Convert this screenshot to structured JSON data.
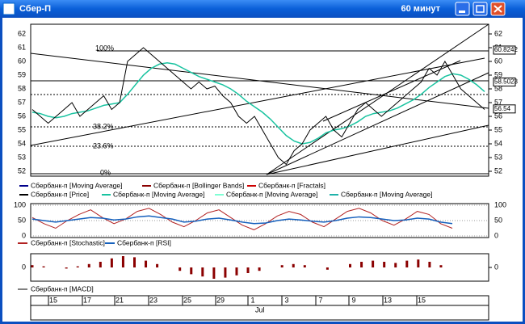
{
  "window": {
    "title": "Сбер-П",
    "timeframe": "60 минут"
  },
  "price_panel": {
    "yticks": [
      62,
      61,
      60,
      59,
      58,
      57,
      56,
      55,
      54,
      53,
      52
    ],
    "price_levels": [
      60.8242,
      58.5023,
      56.54
    ],
    "fib_levels": [
      "100%",
      "38.2%",
      "23.6%",
      "0%"
    ],
    "legend": [
      "Сбербанк-п [Moving Average]",
      "Сбербанк-п [Bollinger Bands]",
      "Сбербанк-п [Fractals]",
      "Сбербанк-п [Price]",
      "Сбербанк-п [Moving Average]",
      "Сбербанк-п [Moving Average]",
      "Сбербанк-п [Moving Average]"
    ],
    "close": [
      56.5,
      56,
      55.5,
      56,
      56.5,
      57,
      56,
      56.5,
      57,
      57.5,
      56.5,
      57,
      60,
      60.5,
      61,
      60.5,
      60,
      59.5,
      59,
      58.5,
      58,
      58.5,
      58,
      58.2,
      57.5,
      57,
      56,
      55.5,
      56,
      55,
      54,
      53,
      52.5,
      53.5,
      54,
      55,
      55.5,
      56,
      55,
      54.5,
      55.5,
      56.5,
      57,
      56.5,
      56,
      56.5,
      57,
      57.5,
      58,
      58.5,
      59.5,
      59,
      60,
      59,
      58,
      57.5,
      57,
      56.5
    ],
    "ma": [
      56.3,
      56.2,
      56,
      55.9,
      56,
      56.2,
      56.3,
      56.4,
      56.6,
      56.8,
      56.9,
      57,
      57.6,
      58.3,
      59,
      59.5,
      59.8,
      59.9,
      59.8,
      59.5,
      59.2,
      58.9,
      58.7,
      58.5,
      58.3,
      58,
      57.6,
      57.1,
      56.7,
      56.3,
      55.8,
      55.2,
      54.6,
      54.2,
      54,
      54.1,
      54.4,
      54.8,
      55,
      55.1,
      55.3,
      55.6,
      56,
      56.2,
      56.3,
      56.4,
      56.6,
      56.9,
      57.2,
      57.6,
      58.1,
      58.5,
      58.9,
      59.1,
      59,
      58.7,
      58.3,
      57.8
    ]
  },
  "oscillator_panel": {
    "yticks": [
      100,
      50,
      0
    ],
    "stochastic": [
      60,
      40,
      25,
      50,
      70,
      85,
      60,
      40,
      55,
      80,
      90,
      70,
      45,
      30,
      50,
      75,
      85,
      60,
      35,
      20,
      40,
      65,
      80,
      70,
      45,
      30,
      55,
      80,
      90,
      75,
      50,
      35,
      55,
      80,
      70,
      40,
      25
    ],
    "rsi": [
      55,
      50,
      45,
      50,
      55,
      60,
      58,
      52,
      55,
      62,
      65,
      60,
      55,
      45,
      48,
      55,
      58,
      52,
      45,
      40,
      42,
      50,
      55,
      52,
      48,
      45,
      50,
      58,
      62,
      60,
      55,
      50,
      52,
      58,
      55,
      45,
      40
    ],
    "legend": [
      "Сбербанк-п [Stochastic]",
      "Сбербанк-п [RSI]"
    ]
  },
  "macd_panel": {
    "yticks": [
      0
    ],
    "values": [
      0.2,
      0.1,
      0,
      -0.1,
      0.1,
      0.3,
      0.5,
      0.8,
      1,
      0.9,
      0.6,
      0.3,
      0,
      -0.3,
      -0.6,
      -0.8,
      -1,
      -0.9,
      -0.7,
      -0.5,
      -0.3,
      0,
      0.2,
      0.3,
      0.2,
      0,
      -0.2,
      0,
      0.3,
      0.5,
      0.6,
      0.5,
      0.4,
      0.6,
      0.7,
      0.5,
      0.2,
      0
    ],
    "legend": "Сбербанк-п [MACD]"
  },
  "x_axis": {
    "labels": [
      "15",
      "17",
      "21",
      "23",
      "25",
      "29",
      "1",
      "3",
      "7",
      "9",
      "13",
      "15"
    ],
    "month": "Jul"
  }
}
